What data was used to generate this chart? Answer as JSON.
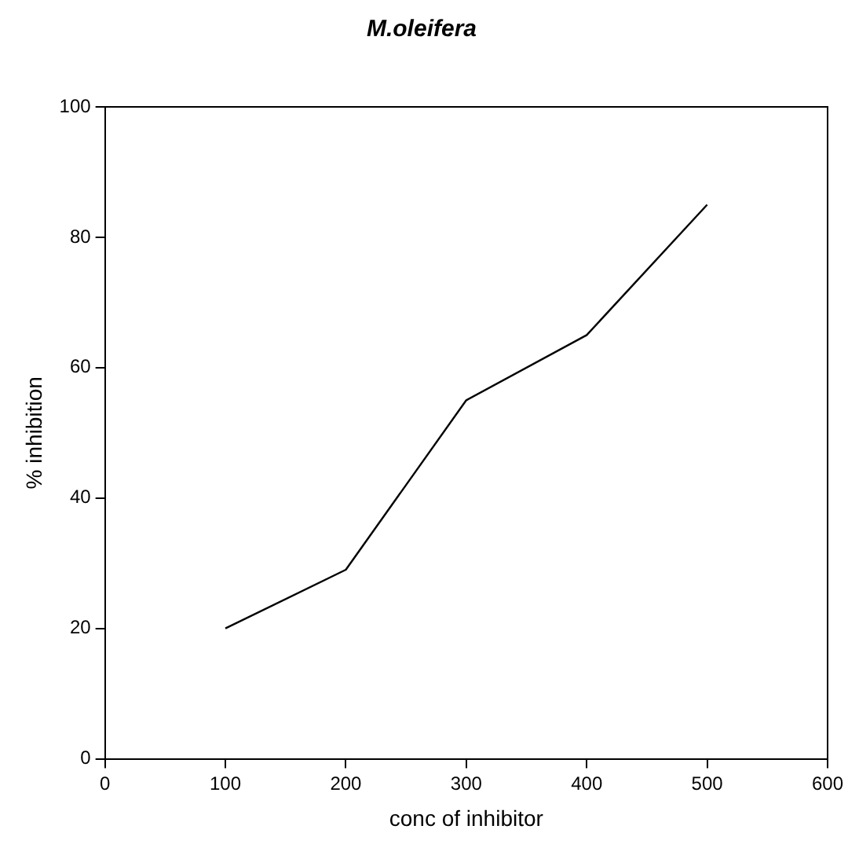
{
  "chart_data": {
    "type": "line",
    "title": "M.oleifera",
    "xlabel": "conc of inhibitor",
    "ylabel": "% inhibition",
    "x": [
      100,
      200,
      300,
      400,
      500
    ],
    "series": [
      {
        "color": "#000000",
        "values": [
          20,
          29,
          55,
          65,
          85
        ]
      }
    ],
    "xlim": [
      0,
      600
    ],
    "xticks": [
      0,
      100,
      200,
      300,
      400,
      500,
      600
    ],
    "ylim": [
      0,
      100
    ],
    "yticks": [
      0,
      20,
      40,
      60,
      80,
      100
    ],
    "grid": false,
    "legend": false,
    "marker": "none",
    "line_style": "solid"
  }
}
